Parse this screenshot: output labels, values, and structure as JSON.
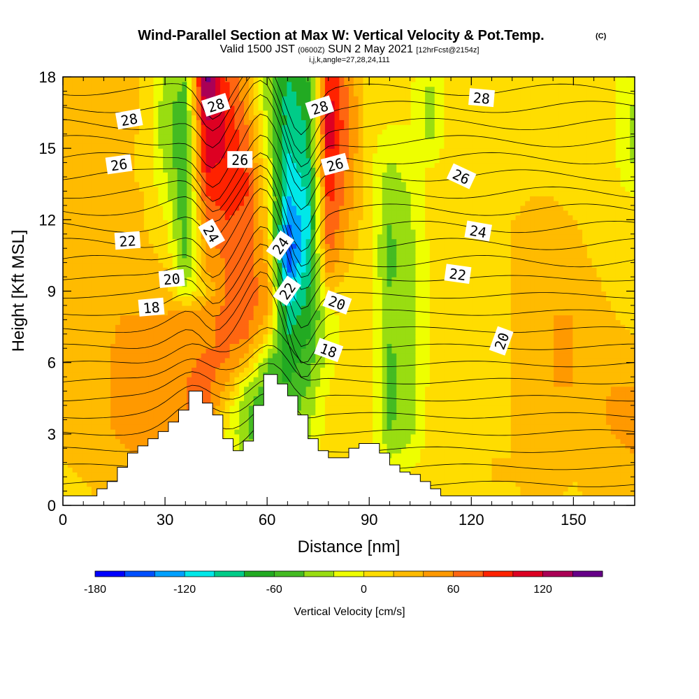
{
  "chart_data": {
    "type": "heatmap",
    "title": "Wind-Parallel Section at Max W: Vertical Velocity & Pot.Temp.",
    "title_mark": "(C)",
    "subtitle_prefix": "Valid 1500 JST",
    "subtitle_zulu": "(0600Z)",
    "subtitle_date": "SUN 2 May 2021",
    "subtitle_fcst": "[12hrFcst@2154z]",
    "subtitle_indices": "i,j,k,angle=27,28,24,111",
    "xlabel": "Distance [nm]",
    "ylabel": "Height [Kft MSL]",
    "xlim": [
      0,
      168
    ],
    "ylim": [
      0,
      18
    ],
    "x_ticks": [
      0,
      30,
      60,
      90,
      120,
      150
    ],
    "y_ticks": [
      0,
      3,
      6,
      9,
      12,
      15,
      18
    ],
    "colorbar": {
      "label": "Vertical Velocity [cm/s]",
      "range": [
        -180,
        160
      ],
      "step": 20,
      "tick_values": [
        -180,
        -120,
        -60,
        0,
        60,
        120
      ],
      "colors": [
        "#0000ff",
        "#0050ff",
        "#00a0ff",
        "#00e8e8",
        "#00cc88",
        "#22aa22",
        "#44bb22",
        "#99dd11",
        "#eeff00",
        "#ffdd00",
        "#ffbb00",
        "#ff9900",
        "#ff6611",
        "#ff2200",
        "#dd0022",
        "#aa0055",
        "#660088"
      ],
      "colors_legend": [
        "#0000ff",
        "#0050ff",
        "#00a0ff",
        "#00e8e8",
        "#00cc88",
        "#22aa22",
        "#44bb22",
        "#99dd11",
        "#eeff00",
        "#ffdd00",
        "#ffbb00",
        "#ff9900",
        "#ff6611",
        "#ff2200",
        "#dd0022",
        "#aa0055",
        "#660088"
      ]
    },
    "terrain": [
      [
        0,
        0.4
      ],
      [
        10,
        0.4
      ],
      [
        10,
        0.7
      ],
      [
        13,
        0.7
      ],
      [
        13,
        1.0
      ],
      [
        16,
        1.0
      ],
      [
        16,
        1.6
      ],
      [
        19,
        1.6
      ],
      [
        19,
        2.2
      ],
      [
        22,
        2.2
      ],
      [
        22,
        2.5
      ],
      [
        25,
        2.5
      ],
      [
        25,
        2.8
      ],
      [
        28,
        2.8
      ],
      [
        28,
        3.1
      ],
      [
        31,
        3.1
      ],
      [
        31,
        3.5
      ],
      [
        34,
        3.5
      ],
      [
        34,
        4.0
      ],
      [
        37,
        4.0
      ],
      [
        37,
        4.8
      ],
      [
        41,
        4.8
      ],
      [
        41,
        4.3
      ],
      [
        44,
        4.3
      ],
      [
        44,
        3.8
      ],
      [
        47,
        3.8
      ],
      [
        47,
        2.8
      ],
      [
        50,
        2.8
      ],
      [
        50,
        2.3
      ],
      [
        53,
        2.3
      ],
      [
        53,
        2.7
      ],
      [
        56,
        2.7
      ],
      [
        56,
        4.2
      ],
      [
        59,
        4.2
      ],
      [
        59,
        5.5
      ],
      [
        63,
        5.5
      ],
      [
        63,
        5.1
      ],
      [
        66,
        5.1
      ],
      [
        66,
        4.6
      ],
      [
        69,
        4.6
      ],
      [
        69,
        3.8
      ],
      [
        72,
        3.8
      ],
      [
        72,
        2.8
      ],
      [
        75,
        2.8
      ],
      [
        75,
        2.3
      ],
      [
        78,
        2.3
      ],
      [
        78,
        2.0
      ],
      [
        81,
        2.0
      ],
      [
        81,
        2.0
      ],
      [
        84,
        2.0
      ],
      [
        84,
        2.4
      ],
      [
        87,
        2.4
      ],
      [
        87,
        2.6
      ],
      [
        90,
        2.6
      ],
      [
        90,
        2.6
      ],
      [
        93,
        2.6
      ],
      [
        93,
        2.2
      ],
      [
        96,
        2.2
      ],
      [
        96,
        1.7
      ],
      [
        99,
        1.7
      ],
      [
        99,
        1.4
      ],
      [
        102,
        1.4
      ],
      [
        102,
        1.3
      ],
      [
        105,
        1.3
      ],
      [
        105,
        1.0
      ],
      [
        108,
        1.0
      ],
      [
        108,
        0.7
      ],
      [
        111,
        0.7
      ],
      [
        111,
        0.4
      ],
      [
        168,
        0.4
      ]
    ],
    "w_field": {
      "x": [
        0,
        6,
        12,
        18,
        24,
        30,
        36,
        42,
        48,
        54,
        60,
        66,
        72,
        78,
        84,
        90,
        96,
        102,
        108,
        114,
        120,
        126,
        132,
        138,
        144,
        150,
        156,
        162,
        168
      ],
      "y": [
        0,
        1,
        2,
        3,
        4,
        5,
        6,
        7,
        8,
        9,
        10,
        11,
        12,
        13,
        14,
        15,
        16,
        17,
        18
      ],
      "values": [
        [
          10,
          15,
          20,
          20,
          25,
          30,
          35,
          30,
          20,
          10,
          0,
          5,
          10,
          10,
          5,
          0,
          5,
          10,
          10,
          20,
          20,
          15,
          15,
          20,
          20,
          15,
          20,
          30,
          30
        ],
        [
          15,
          20,
          25,
          25,
          35,
          40,
          45,
          35,
          20,
          -10,
          -20,
          -10,
          0,
          10,
          10,
          5,
          10,
          10,
          10,
          15,
          20,
          20,
          20,
          25,
          25,
          20,
          25,
          30,
          35
        ],
        [
          20,
          25,
          30,
          35,
          45,
          50,
          55,
          40,
          10,
          -30,
          -40,
          -30,
          -10,
          10,
          15,
          10,
          -20,
          -10,
          10,
          15,
          15,
          20,
          20,
          30,
          30,
          30,
          30,
          35,
          40
        ],
        [
          20,
          25,
          35,
          45,
          55,
          55,
          65,
          55,
          0,
          -40,
          -50,
          -40,
          -25,
          10,
          15,
          10,
          -40,
          -25,
          10,
          15,
          15,
          15,
          20,
          35,
          35,
          35,
          35,
          40,
          45
        ],
        [
          20,
          25,
          35,
          55,
          60,
          55,
          60,
          70,
          10,
          -40,
          -60,
          -50,
          -30,
          5,
          15,
          10,
          -45,
          -30,
          10,
          15,
          15,
          15,
          20,
          35,
          40,
          35,
          35,
          45,
          50
        ],
        [
          20,
          25,
          35,
          55,
          55,
          50,
          60,
          70,
          40,
          -20,
          -50,
          -60,
          -40,
          0,
          15,
          10,
          -45,
          -30,
          5,
          15,
          15,
          15,
          20,
          35,
          40,
          40,
          35,
          40,
          40
        ],
        [
          20,
          25,
          35,
          50,
          50,
          50,
          55,
          65,
          60,
          30,
          -40,
          -70,
          -50,
          -10,
          15,
          10,
          -45,
          -30,
          5,
          15,
          15,
          15,
          20,
          35,
          40,
          40,
          35,
          30,
          25
        ],
        [
          20,
          25,
          35,
          45,
          45,
          45,
          50,
          55,
          65,
          60,
          10,
          -80,
          -60,
          -10,
          10,
          5,
          -40,
          -30,
          5,
          15,
          15,
          15,
          20,
          35,
          40,
          40,
          30,
          25,
          20
        ],
        [
          20,
          25,
          35,
          40,
          40,
          40,
          50,
          55,
          65,
          70,
          40,
          -90,
          -70,
          -10,
          10,
          5,
          -40,
          -30,
          5,
          15,
          15,
          15,
          20,
          30,
          40,
          40,
          30,
          20,
          15
        ],
        [
          20,
          25,
          30,
          35,
          35,
          30,
          -20,
          20,
          60,
          75,
          50,
          -120,
          -80,
          20,
          10,
          5,
          -40,
          -30,
          5,
          15,
          15,
          15,
          20,
          30,
          40,
          35,
          25,
          15,
          10
        ],
        [
          20,
          25,
          25,
          30,
          30,
          20,
          -40,
          40,
          60,
          70,
          40,
          -150,
          -90,
          50,
          20,
          5,
          -45,
          -30,
          5,
          15,
          15,
          15,
          20,
          30,
          35,
          30,
          20,
          10,
          5
        ],
        [
          20,
          25,
          25,
          25,
          25,
          10,
          -50,
          50,
          70,
          70,
          30,
          -160,
          -100,
          70,
          30,
          5,
          -45,
          -30,
          5,
          15,
          15,
          15,
          20,
          25,
          30,
          25,
          15,
          10,
          5
        ],
        [
          20,
          20,
          25,
          25,
          20,
          0,
          -55,
          60,
          80,
          75,
          20,
          -140,
          -110,
          80,
          40,
          5,
          -40,
          -20,
          5,
          15,
          15,
          15,
          20,
          25,
          25,
          20,
          15,
          10,
          5
        ],
        [
          20,
          20,
          25,
          25,
          20,
          -10,
          -60,
          80,
          90,
          80,
          10,
          -120,
          -100,
          90,
          50,
          5,
          -40,
          -20,
          5,
          15,
          15,
          15,
          15,
          20,
          20,
          15,
          10,
          5,
          0
        ],
        [
          20,
          20,
          25,
          25,
          15,
          -20,
          -60,
          100,
          95,
          80,
          0,
          -110,
          -90,
          100,
          50,
          5,
          -30,
          -10,
          5,
          15,
          15,
          15,
          15,
          15,
          15,
          10,
          10,
          5,
          -20
        ],
        [
          20,
          20,
          25,
          25,
          15,
          -30,
          -60,
          110,
          100,
          70,
          -10,
          -100,
          -80,
          110,
          60,
          5,
          -10,
          0,
          -20,
          15,
          15,
          15,
          10,
          10,
          10,
          10,
          10,
          5,
          -30
        ],
        [
          20,
          20,
          25,
          30,
          15,
          -30,
          -60,
          120,
          100,
          60,
          -20,
          -90,
          -80,
          120,
          60,
          5,
          0,
          0,
          -30,
          15,
          20,
          15,
          10,
          10,
          10,
          10,
          5,
          0,
          -30
        ],
        [
          20,
          20,
          25,
          30,
          15,
          -30,
          -50,
          140,
          90,
          50,
          -30,
          -90,
          -70,
          110,
          60,
          5,
          0,
          0,
          -30,
          15,
          20,
          15,
          10,
          10,
          10,
          5,
          5,
          0,
          -20
        ],
        [
          20,
          20,
          25,
          30,
          15,
          -20,
          -40,
          150,
          80,
          40,
          -30,
          -80,
          -60,
          100,
          50,
          5,
          5,
          5,
          -20,
          15,
          15,
          15,
          10,
          10,
          5,
          5,
          5,
          0,
          -10
        ]
      ]
    },
    "contour_labels": [
      {
        "text": "28",
        "x": 19.5,
        "y": 16.2,
        "angle": 10
      },
      {
        "text": "26",
        "x": 16.5,
        "y": 14.3,
        "angle": 8
      },
      {
        "text": "22",
        "x": 19.0,
        "y": 11.1,
        "angle": 4
      },
      {
        "text": "20",
        "x": 32.0,
        "y": 9.5,
        "angle": 5
      },
      {
        "text": "18",
        "x": 26.0,
        "y": 8.3,
        "angle": 5
      },
      {
        "text": "28",
        "x": 45.0,
        "y": 16.8,
        "angle": 18
      },
      {
        "text": "26",
        "x": 52.0,
        "y": 14.5,
        "angle": 0
      },
      {
        "text": "24",
        "x": 43.5,
        "y": 11.4,
        "angle": -60
      },
      {
        "text": "24",
        "x": 64.0,
        "y": 10.9,
        "angle": 55
      },
      {
        "text": "22",
        "x": 66.0,
        "y": 9.0,
        "angle": 55
      },
      {
        "text": "28",
        "x": 75.5,
        "y": 16.7,
        "angle": 18
      },
      {
        "text": "26",
        "x": 80.0,
        "y": 14.3,
        "angle": 15
      },
      {
        "text": "20",
        "x": 80.5,
        "y": 8.5,
        "angle": -20
      },
      {
        "text": "18",
        "x": 78.0,
        "y": 6.5,
        "angle": -20
      },
      {
        "text": "28",
        "x": 123.0,
        "y": 17.1,
        "angle": -5
      },
      {
        "text": "26",
        "x": 117.0,
        "y": 13.8,
        "angle": -25
      },
      {
        "text": "24",
        "x": 122.0,
        "y": 11.5,
        "angle": -10
      },
      {
        "text": "22",
        "x": 116.0,
        "y": 9.7,
        "angle": -8
      },
      {
        "text": "20",
        "x": 129.0,
        "y": 6.9,
        "angle": 70
      }
    ]
  }
}
